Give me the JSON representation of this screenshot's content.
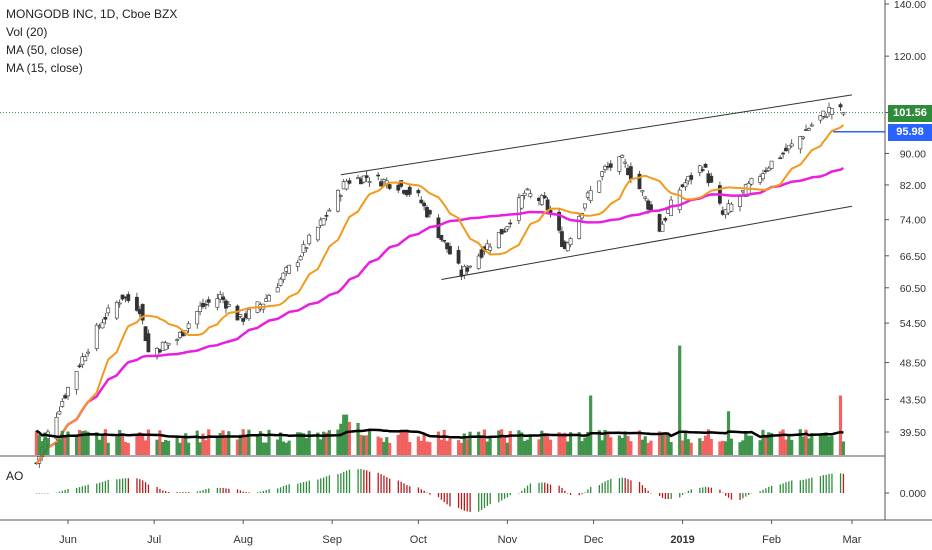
{
  "header": {
    "title": "MONGODB INC, 1D, Cboe BZX",
    "vol_label": "Vol (20)",
    "ma50_label": "MA (50, close)",
    "ma15_label": "MA (15, close)",
    "ao_label": "AO"
  },
  "price_tags": {
    "last": "101.56",
    "level": "95.98"
  },
  "colors": {
    "up": "#2e8b3a",
    "down": "#ef5350",
    "ma50": "#e91fe0",
    "ma15": "#f29a1c",
    "vol_ma": "#000000",
    "last_tag": "#2e8b3a",
    "level_line": "#2962ff",
    "ao_up": "#2e8b3a",
    "ao_down": "#b71c1c"
  },
  "chart_data": {
    "type": "candlestick",
    "title": "MONGODB INC, 1D, Cboe BZX",
    "y_axis_scale": "log",
    "y_ticks": [
      "140.00",
      "120.00",
      "101.56",
      "90.00",
      "82.00",
      "74.00",
      "66.50",
      "60.50",
      "54.50",
      "48.50",
      "43.50",
      "39.50"
    ],
    "ao_ticks": [
      "0.000"
    ],
    "x_ticks": [
      "Jun",
      "Jul",
      "Aug",
      "Sep",
      "Oct",
      "Nov",
      "Dec",
      "2019",
      "Feb",
      "Mar"
    ],
    "last_price": 101.56,
    "horizontal_level": 95.98,
    "close_anchors": [
      [
        "2018-05-21",
        36
      ],
      [
        "2018-06-01",
        45
      ],
      [
        "2018-06-13",
        55
      ],
      [
        "2018-06-20",
        59
      ],
      [
        "2018-06-26",
        57
      ],
      [
        "2018-06-29",
        50
      ],
      [
        "2018-07-09",
        52
      ],
      [
        "2018-07-17",
        57
      ],
      [
        "2018-07-24",
        59
      ],
      [
        "2018-07-31",
        55
      ],
      [
        "2018-08-08",
        58
      ],
      [
        "2018-08-20",
        66
      ],
      [
        "2018-08-29",
        74
      ],
      [
        "2018-09-06",
        83
      ],
      [
        "2018-09-13",
        84
      ],
      [
        "2018-09-24",
        82
      ],
      [
        "2018-10-01",
        79
      ],
      [
        "2018-10-09",
        70
      ],
      [
        "2018-10-16",
        63
      ],
      [
        "2018-10-24",
        68
      ],
      [
        "2018-10-31",
        72
      ],
      [
        "2018-11-07",
        80
      ],
      [
        "2018-11-14",
        78
      ],
      [
        "2018-11-21",
        68
      ],
      [
        "2018-11-28",
        78
      ],
      [
        "2018-12-05",
        86
      ],
      [
        "2018-12-11",
        88
      ],
      [
        "2018-12-18",
        80
      ],
      [
        "2018-12-24",
        72
      ],
      [
        "2018-12-31",
        81
      ],
      [
        "2019-01-08",
        87
      ],
      [
        "2019-01-15",
        75
      ],
      [
        "2019-01-22",
        80
      ],
      [
        "2019-01-31",
        87
      ],
      [
        "2019-02-08",
        92
      ],
      [
        "2019-02-15",
        98
      ],
      [
        "2019-02-22",
        103
      ],
      [
        "2019-02-26",
        101.56
      ]
    ],
    "volume_spikes": [
      [
        "2018-12-31",
        51
      ],
      [
        "2019-02-25",
        44
      ],
      [
        "2018-11-30",
        44
      ],
      [
        "2019-01-17",
        42
      ]
    ],
    "channel": {
      "upper": [
        [
          "2018-09-04",
          84.5
        ],
        [
          "2019-03-01",
          107
        ]
      ],
      "lower": [
        [
          "2018-10-09",
          62
        ],
        [
          "2019-03-01",
          77
        ]
      ]
    }
  }
}
